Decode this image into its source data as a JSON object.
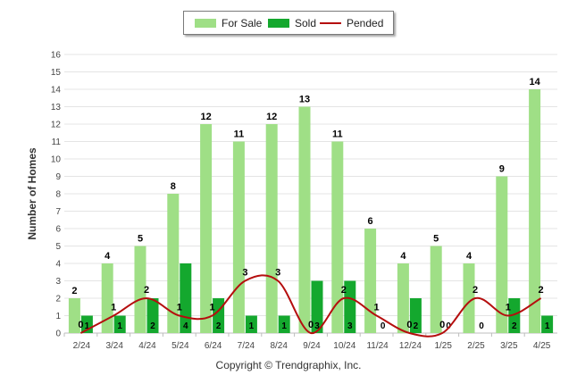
{
  "chart_data": {
    "type": "bar",
    "categories": [
      "2/24",
      "3/24",
      "4/24",
      "5/24",
      "6/24",
      "7/24",
      "8/24",
      "9/24",
      "10/24",
      "11/24",
      "12/24",
      "1/25",
      "2/25",
      "3/25",
      "4/25"
    ],
    "series": [
      {
        "name": "For Sale",
        "kind": "bar",
        "color": "#9fdf86",
        "values": [
          2,
          4,
          5,
          8,
          12,
          11,
          12,
          13,
          11,
          6,
          4,
          5,
          4,
          9,
          14
        ]
      },
      {
        "name": "Sold",
        "kind": "bar",
        "color": "#14a82e",
        "values": [
          1,
          1,
          2,
          4,
          2,
          1,
          1,
          3,
          3,
          0,
          2,
          0,
          0,
          2,
          1
        ]
      },
      {
        "name": "Pended",
        "kind": "line",
        "color": "#b50e0e",
        "values": [
          0,
          1,
          2,
          1,
          1,
          3,
          3,
          0,
          2,
          1,
          0,
          0,
          2,
          1,
          2
        ]
      }
    ],
    "ylabel": "Number of Homes",
    "xlabel": "",
    "ylim": [
      0,
      16
    ],
    "yticks": [
      0,
      1,
      2,
      3,
      4,
      5,
      6,
      7,
      8,
      9,
      10,
      11,
      12,
      13,
      14,
      15,
      16
    ],
    "grid": true,
    "legend_position": "top-center",
    "data_labels": true
  },
  "footer": {
    "copyright": "Copyright © Trendgraphix, Inc."
  }
}
